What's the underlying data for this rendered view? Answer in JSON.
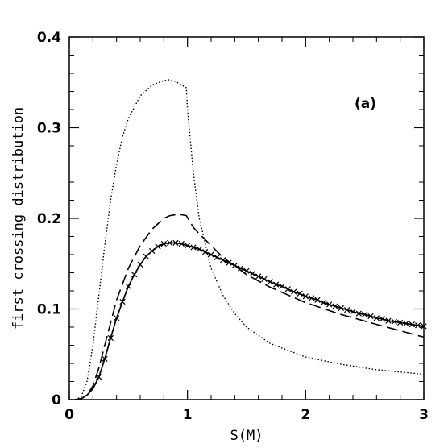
{
  "chart_data": {
    "type": "line",
    "title": "",
    "xlabel": "S(M)",
    "ylabel": "first crossing distribution",
    "annotation": "(a)",
    "xlim": [
      0,
      3
    ],
    "ylim": [
      0,
      0.4
    ],
    "x_ticks": [
      "0",
      "1",
      "2",
      "3"
    ],
    "y_ticks": [
      "0",
      "0.1",
      "0.2",
      "0.3",
      "0.4"
    ],
    "grid": false,
    "series": [
      {
        "style": "dotted",
        "x": [
          0.05,
          0.1,
          0.15,
          0.2,
          0.25,
          0.3,
          0.35,
          0.4,
          0.45,
          0.5,
          0.6,
          0.7,
          0.8,
          0.85,
          0.9,
          0.95,
          0.99,
          1.0,
          1.05,
          1.1,
          1.2,
          1.3,
          1.4,
          1.5,
          1.7,
          2.0,
          2.3,
          2.6,
          3.0
        ],
        "y": [
          0.0,
          0.003,
          0.02,
          0.06,
          0.115,
          0.17,
          0.22,
          0.26,
          0.29,
          0.31,
          0.335,
          0.347,
          0.352,
          0.353,
          0.351,
          0.347,
          0.344,
          0.32,
          0.25,
          0.2,
          0.145,
          0.115,
          0.095,
          0.08,
          0.062,
          0.047,
          0.039,
          0.033,
          0.028
        ]
      },
      {
        "style": "dashed",
        "x": [
          0.05,
          0.1,
          0.15,
          0.2,
          0.25,
          0.3,
          0.35,
          0.4,
          0.5,
          0.6,
          0.7,
          0.8,
          0.85,
          0.9,
          0.95,
          0.99,
          1.05,
          1.1,
          1.2,
          1.3,
          1.5,
          1.7,
          2.0,
          2.3,
          2.6,
          3.0
        ],
        "y": [
          0.0,
          0.001,
          0.005,
          0.015,
          0.035,
          0.06,
          0.085,
          0.11,
          0.145,
          0.17,
          0.188,
          0.2,
          0.203,
          0.204,
          0.204,
          0.203,
          0.19,
          0.183,
          0.17,
          0.157,
          0.138,
          0.124,
          0.107,
          0.094,
          0.083,
          0.069
        ]
      },
      {
        "style": "solid-x",
        "x": [
          0.05,
          0.1,
          0.15,
          0.2,
          0.25,
          0.3,
          0.35,
          0.4,
          0.45,
          0.5,
          0.55,
          0.6,
          0.65,
          0.7,
          0.75,
          0.8,
          0.85,
          0.9,
          0.95,
          1.0,
          1.05,
          1.1,
          1.15,
          1.2,
          1.25,
          1.3,
          1.35,
          1.4,
          1.45,
          1.5,
          1.55,
          1.6,
          1.65,
          1.7,
          1.75,
          1.8,
          1.85,
          1.9,
          1.95,
          2.0,
          2.05,
          2.1,
          2.15,
          2.2,
          2.25,
          2.3,
          2.35,
          2.4,
          2.45,
          2.5,
          2.55,
          2.6,
          2.65,
          2.7,
          2.75,
          2.8,
          2.85,
          2.9,
          2.95,
          3.0
        ],
        "y": [
          0.0,
          0.001,
          0.005,
          0.012,
          0.025,
          0.045,
          0.068,
          0.09,
          0.108,
          0.125,
          0.138,
          0.149,
          0.158,
          0.164,
          0.169,
          0.172,
          0.173,
          0.173,
          0.172,
          0.17,
          0.168,
          0.166,
          0.163,
          0.16,
          0.157,
          0.154,
          0.151,
          0.148,
          0.145,
          0.142,
          0.139,
          0.136,
          0.133,
          0.13,
          0.127,
          0.125,
          0.122,
          0.119,
          0.117,
          0.114,
          0.112,
          0.11,
          0.107,
          0.105,
          0.103,
          0.101,
          0.099,
          0.097,
          0.095,
          0.094,
          0.092,
          0.09,
          0.089,
          0.087,
          0.086,
          0.085,
          0.084,
          0.083,
          0.082,
          0.081
        ]
      }
    ]
  }
}
